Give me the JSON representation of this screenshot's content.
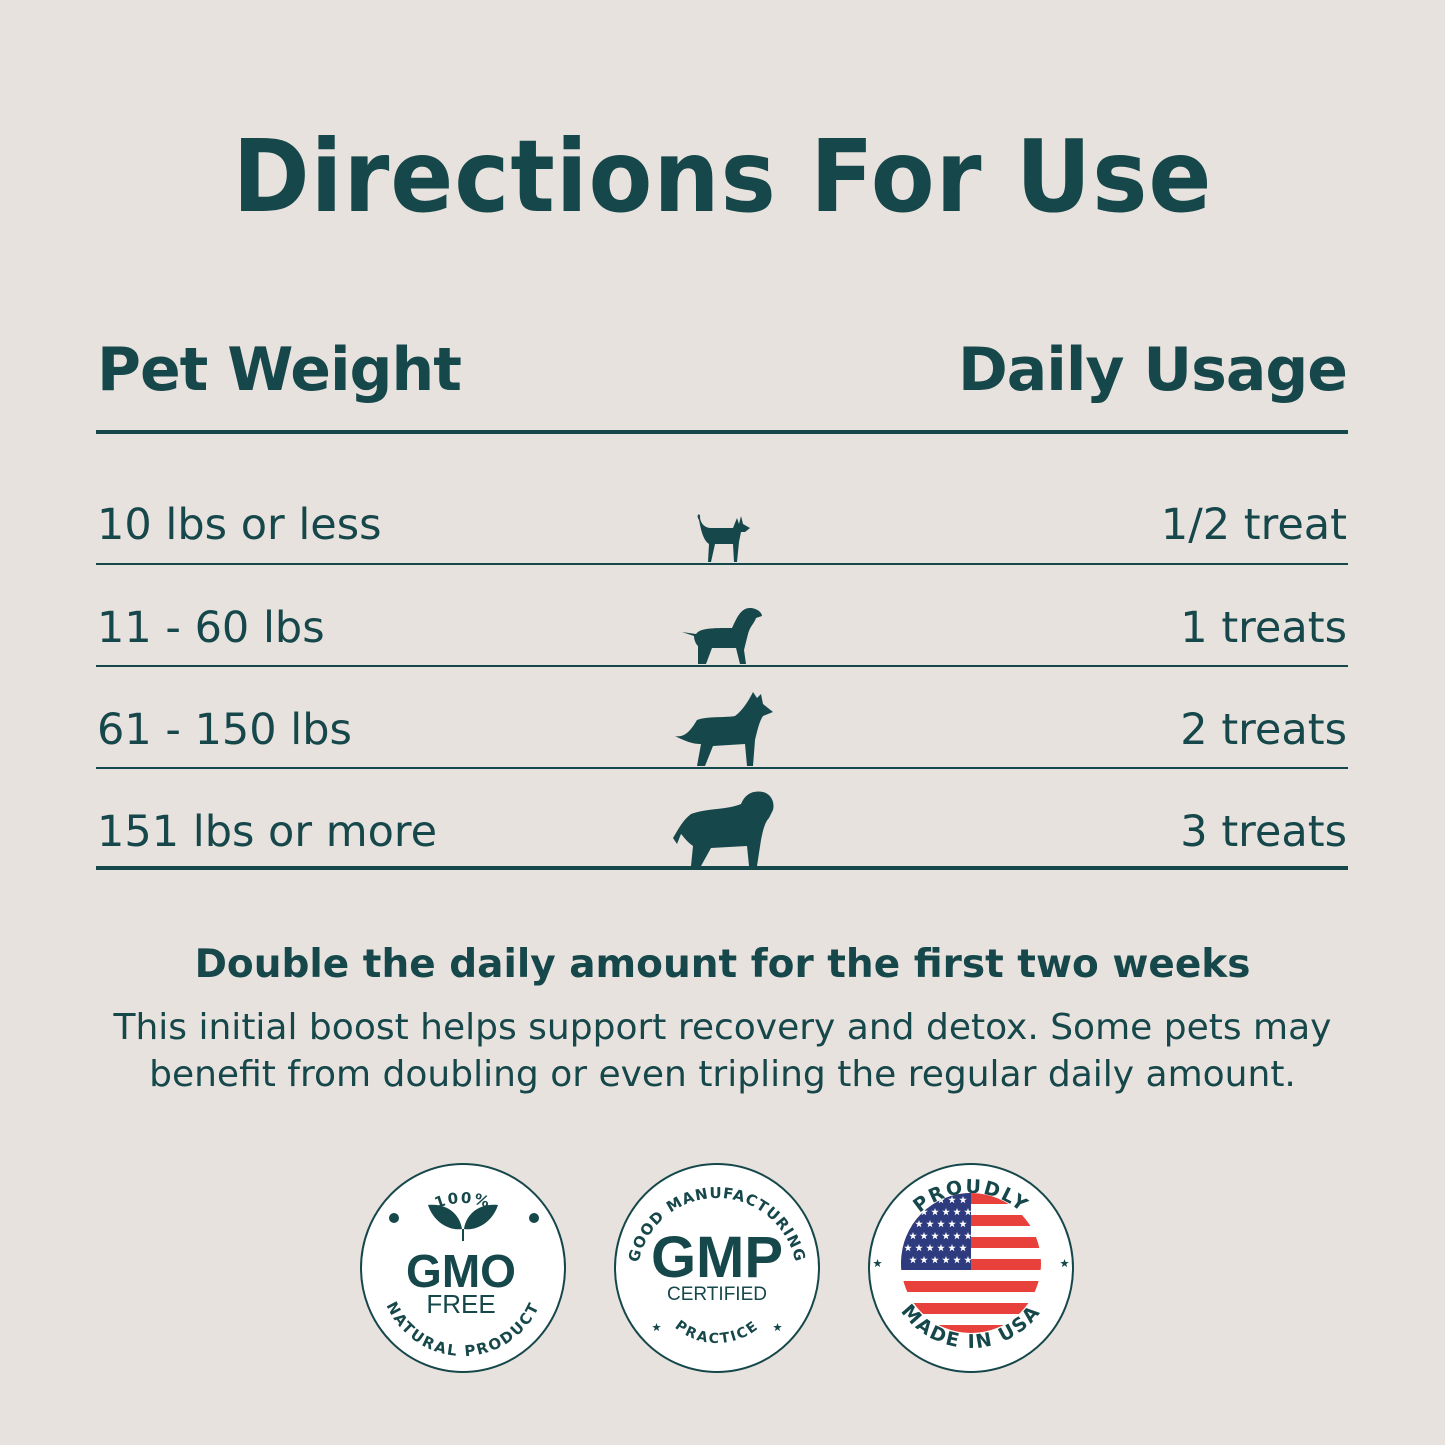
{
  "title": "Directions For Use",
  "table": {
    "headers": {
      "left": "Pet Weight",
      "right": "Daily Usage"
    },
    "rows": [
      {
        "weight": "10 lbs or less",
        "usage": "1/2 treat",
        "icon": "small-dog-icon"
      },
      {
        "weight": "11 - 60 lbs",
        "usage": "1 treats",
        "icon": "medium-dog-icon"
      },
      {
        "weight": "61 - 150 lbs",
        "usage": "2 treats",
        "icon": "large-dog-icon"
      },
      {
        "weight": "151 lbs or more",
        "usage": "3 treats",
        "icon": "giant-dog-icon"
      }
    ]
  },
  "note": {
    "title": "Double the daily amount for the first two weeks",
    "body": "This initial boost helps support recovery and detox. Some pets may benefit from doubling or even tripling the regular daily amount."
  },
  "badges": [
    {
      "top": "100%",
      "main": "GMO",
      "sub": "FREE",
      "bottom": "NATURAL PRODUCT"
    },
    {
      "top": "GOOD MANUFACTURING",
      "main": "GMP",
      "sub": "CERTIFIED",
      "bottom": "PRACTICE"
    },
    {
      "top": "PROUDLY",
      "bottom": "MADE IN USA"
    }
  ],
  "colors": {
    "primary": "#16474a",
    "background": "#e8e2de",
    "flag_red": "#e8413c",
    "flag_blue": "#2e3b7e"
  }
}
